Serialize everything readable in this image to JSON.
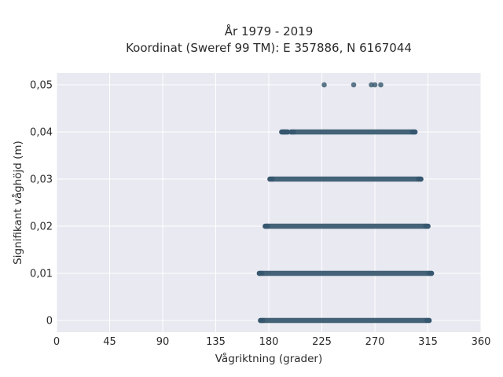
{
  "chart_data": {
    "type": "scatter",
    "title": "År 1979 - 2019",
    "subtitle": "Koordinat (Sweref 99 TM): E 357886, N 6167044",
    "xlabel": "Vågriktning (grader)",
    "ylabel": "Signifikant våghöjd (m)",
    "xlim": [
      0,
      360
    ],
    "ylim": [
      -0.0025,
      0.0525
    ],
    "xticks": [
      0,
      45,
      90,
      135,
      180,
      225,
      270,
      315,
      360
    ],
    "xtick_labels": [
      "0",
      "45",
      "90",
      "135",
      "180",
      "225",
      "270",
      "315",
      "360"
    ],
    "yticks": [
      0,
      0.01,
      0.02,
      0.03,
      0.04,
      0.05
    ],
    "ytick_labels": [
      "0",
      "0,01",
      "0,02",
      "0,03",
      "0,04",
      "0,05"
    ],
    "grid": true,
    "marker_color": "#34566d",
    "plot_background": "#e8e9f1",
    "series": [
      {
        "points": [
          {
            "x": 227,
            "y": 0.05
          },
          {
            "x": 252,
            "y": 0.05
          },
          {
            "x": 267,
            "y": 0.05
          },
          {
            "x": 270,
            "y": 0.05
          },
          {
            "x": 275,
            "y": 0.05
          }
        ],
        "ranges": [
          {
            "y": 0.04,
            "x_min": 191,
            "x_max": 196
          },
          {
            "y": 0.04,
            "x_min": 199,
            "x_max": 304
          },
          {
            "y": 0.03,
            "x_min": 181,
            "x_max": 309
          },
          {
            "y": 0.02,
            "x_min": 177,
            "x_max": 315
          },
          {
            "y": 0.01,
            "x_min": 172,
            "x_max": 318
          },
          {
            "y": 0.0,
            "x_min": 173,
            "x_max": 316
          }
        ]
      }
    ]
  }
}
